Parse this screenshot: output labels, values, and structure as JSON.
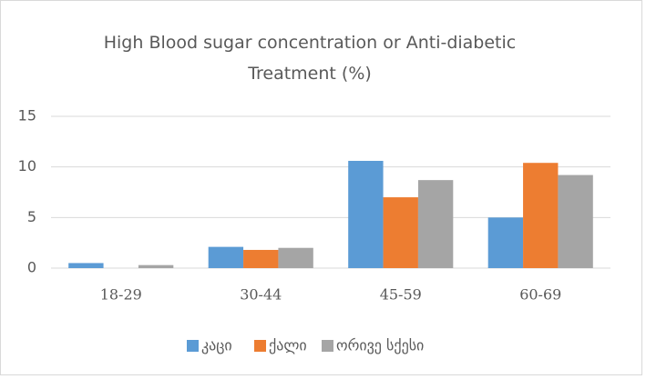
{
  "chart_data": {
    "type": "bar",
    "title": "High Blood sugar concentration or Anti-diabetic Treatment (%)",
    "categories": [
      "18-29",
      "30-44",
      "45-59",
      "60-69"
    ],
    "series": [
      {
        "name": "კაცი",
        "color": "#5b9bd5",
        "values": [
          0.5,
          2.1,
          10.6,
          5.0
        ]
      },
      {
        "name": "ქალი",
        "color": "#ed7d31",
        "values": [
          0,
          1.8,
          7.0,
          10.4
        ]
      },
      {
        "name": "ორივე სქესი",
        "color": "#a5a5a5",
        "values": [
          0.3,
          2.0,
          8.7,
          9.2
        ]
      }
    ],
    "ylim": [
      0,
      15
    ],
    "yticks": [
      0,
      5,
      10,
      15
    ],
    "grid": true,
    "legend": "bottom"
  }
}
